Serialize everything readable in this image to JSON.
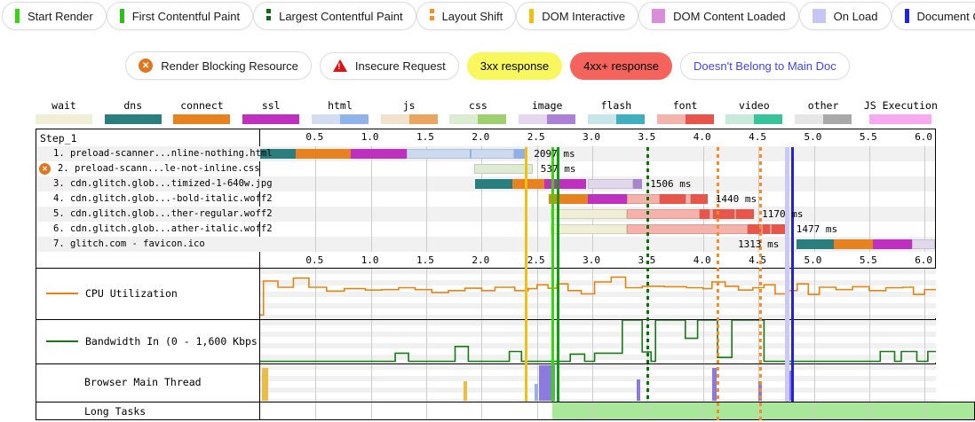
{
  "metrics_legend": [
    {
      "label": "Start Render",
      "icon": "bar",
      "color": "#35d60e"
    },
    {
      "label": "First Contentful Paint",
      "icon": "bar",
      "color": "#2bc116"
    },
    {
      "label": "Largest Contentful Paint",
      "icon": "dashed-bar",
      "color": "#0a6e0a"
    },
    {
      "label": "Layout Shift",
      "icon": "dashed-bar",
      "color": "#f79022"
    },
    {
      "label": "DOM Interactive",
      "icon": "bar",
      "color": "#f0c113"
    },
    {
      "label": "DOM Content Loaded",
      "icon": "square",
      "color": "#d88fd8"
    },
    {
      "label": "On Load",
      "icon": "square",
      "color": "#c6c6f2"
    },
    {
      "label": "Document Complete",
      "icon": "bar",
      "color": "#2222dd"
    }
  ],
  "flags_legend": [
    {
      "label": "Render Blocking Resource",
      "icon": "blocking-icon",
      "icon_color": "#e2761d",
      "bg": "#ffffff",
      "text_color": "#1b1b1b"
    },
    {
      "label": "Insecure Request",
      "icon": "insecure-icon",
      "icon_color": "#dd1111",
      "bg": "#ffffff",
      "text_color": "#1b1b1b"
    },
    {
      "label": "3xx response",
      "icon": null,
      "bg": "#f8f85e",
      "text_color": "#000000"
    },
    {
      "label": "4xx+ response",
      "icon": null,
      "bg": "#f4645c",
      "text_color": "#000000"
    },
    {
      "label": "Doesn't Belong to Main Doc",
      "icon": null,
      "bg": "#ffffff",
      "text_color": "#4343f5"
    }
  ],
  "resource_legend": [
    {
      "label": "wait",
      "colors": [
        "#f0eed6"
      ]
    },
    {
      "label": "dns",
      "colors": [
        "#2a7e7e"
      ]
    },
    {
      "label": "connect",
      "colors": [
        "#e8821e"
      ]
    },
    {
      "label": "ssl",
      "colors": [
        "#c030c0"
      ]
    },
    {
      "label": "html",
      "colors": [
        "#d3ddf1",
        "#8fb3ea"
      ]
    },
    {
      "label": "js",
      "colors": [
        "#f0e2cd",
        "#eaa65e"
      ]
    },
    {
      "label": "css",
      "colors": [
        "#dcecd0",
        "#9ed06f"
      ]
    },
    {
      "label": "image",
      "colors": [
        "#e5d7ef",
        "#ab80d6"
      ]
    },
    {
      "label": "flash",
      "colors": [
        "#c7e6e8",
        "#40b0c0"
      ]
    },
    {
      "label": "font",
      "colors": [
        "#f4b4ac",
        "#e8544a"
      ]
    },
    {
      "label": "video",
      "colors": [
        "#c9e9da",
        "#37c39b"
      ]
    },
    {
      "label": "other",
      "colors": [
        "#e6e6e6",
        "#a9a9a9"
      ]
    },
    {
      "label": "JS Execution",
      "colors": [
        "#f8a9ef"
      ]
    }
  ],
  "palette": {
    "dns": "#2a7e7e",
    "connect": "#e8821e",
    "ssl": "#c030c0",
    "wait": "#f0eed6",
    "html_l": "#ccdaf1",
    "html_d": "#8fb0e8",
    "css_l": "#dcebd2",
    "img_l": "#e2d8ee",
    "img_d": "#a786d0",
    "font_l": "#f4b2aa",
    "font_d": "#e8554b"
  },
  "waterfall": {
    "step_label": "Step_1",
    "axis_ticks": [
      "0.5",
      "1.0",
      "1.5",
      "2.0",
      "2.5",
      "3.0",
      "3.5",
      "4.0",
      "4.5",
      "5.0",
      "5.5",
      "6.0"
    ],
    "requests": [
      {
        "label": "1. preload-scanner...nline-nothing.html",
        "blocked": false,
        "time_label": "2097 ms",
        "label_t": 2.44,
        "segments": [
          [
            0,
            0.32,
            "dns"
          ],
          [
            0.32,
            0.82,
            "connect"
          ],
          [
            0.82,
            1.32,
            "ssl"
          ],
          [
            1.32,
            2.29,
            "html_l"
          ],
          [
            1.89,
            1.91,
            "html_d"
          ],
          [
            2.29,
            2.4,
            "html_d"
          ]
        ]
      },
      {
        "label": "2. preload-scann...le-not-inline.css",
        "blocked": true,
        "time_label": "537 ms",
        "label_t": 2.5,
        "segments": [
          [
            1.93,
            2.46,
            "css_l"
          ]
        ]
      },
      {
        "label": "3. cdn.glitch.glob...timized-1-640w.jpg",
        "blocked": false,
        "time_label": "1506 ms",
        "label_t": 3.49,
        "segments": [
          [
            1.94,
            2.28,
            "dns"
          ],
          [
            2.28,
            2.57,
            "connect"
          ],
          [
            2.57,
            2.94,
            "ssl"
          ],
          [
            2.96,
            3.37,
            "img_l"
          ],
          [
            3.37,
            3.45,
            "img_d"
          ]
        ]
      },
      {
        "label": "4. cdn.glitch.glob...-bold-italic.woff2",
        "blocked": false,
        "time_label": "1440 ms",
        "label_t": 4.08,
        "segments": [
          [
            2.61,
            2.96,
            "connect"
          ],
          [
            2.96,
            3.31,
            "ssl"
          ],
          [
            3.31,
            3.61,
            "font_l"
          ],
          [
            3.61,
            3.84,
            "font_d"
          ],
          [
            3.84,
            3.89,
            "font_l"
          ],
          [
            3.89,
            4.04,
            "font_d"
          ]
        ]
      },
      {
        "label": "5. cdn.glitch.glob...ther-regular.woff2",
        "blocked": false,
        "time_label": "1170 ms",
        "label_t": 4.5,
        "segments": [
          [
            2.62,
            3.31,
            "wait"
          ],
          [
            3.31,
            3.97,
            "font_l"
          ],
          [
            3.97,
            4.06,
            "font_d"
          ],
          [
            4.06,
            4.09,
            "font_l"
          ],
          [
            4.09,
            4.28,
            "font_d"
          ],
          [
            4.28,
            4.3,
            "font_l"
          ],
          [
            4.3,
            4.46,
            "font_d"
          ]
        ]
      },
      {
        "label": "6. cdn.glitch.glob...ather-italic.woff2",
        "blocked": false,
        "time_label": "1477 ms",
        "label_t": 4.81,
        "segments": [
          [
            2.62,
            3.31,
            "wait"
          ],
          [
            3.31,
            4.4,
            "font_l"
          ],
          [
            4.4,
            4.52,
            "font_d"
          ],
          [
            4.52,
            4.54,
            "font_l"
          ],
          [
            4.54,
            4.6,
            "font_d"
          ],
          [
            4.6,
            4.62,
            "font_l"
          ],
          [
            4.62,
            4.77,
            "font_d"
          ]
        ]
      },
      {
        "label": "7. glitch.com - favicon.ico",
        "blocked": false,
        "time_label": "1313 ms",
        "label_t": 4.78,
        "label_before": true,
        "segments": [
          [
            4.84,
            5.18,
            "dns"
          ],
          [
            5.18,
            5.53,
            "connect"
          ],
          [
            5.53,
            5.89,
            "ssl"
          ],
          [
            5.89,
            6.12,
            "img_l"
          ]
        ]
      }
    ]
  },
  "markers": [
    {
      "name": "dom-interactive",
      "t": 2.4,
      "color": "#f0c113",
      "style": "solid",
      "w": 3
    },
    {
      "name": "first-contentful-paint",
      "t": 2.64,
      "color": "#35d60e",
      "style": "solid",
      "w": 3
    },
    {
      "name": "start-render",
      "t": 2.69,
      "color": "#0ca00c",
      "style": "solid",
      "w": 3
    },
    {
      "name": "largest-contentful-paint",
      "t": 3.5,
      "color": "#0a700a",
      "style": "dashed",
      "w": 3
    },
    {
      "name": "layout-shift-1",
      "t": 4.13,
      "color": "#fb8c1e",
      "style": "dashed",
      "w": 3,
      "tall": true
    },
    {
      "name": "layout-shift-2",
      "t": 4.52,
      "color": "#fb8c1e",
      "style": "dashed",
      "w": 3,
      "tall": true
    },
    {
      "name": "on-load",
      "t": 4.76,
      "color": "#c9c9f4",
      "style": "solid",
      "w": 5
    },
    {
      "name": "document-complete",
      "t": 4.81,
      "color": "#2020dd",
      "style": "solid",
      "w": 3
    }
  ],
  "cpu": {
    "label": "CPU Utilization",
    "color": "#e8830f",
    "points": [
      [
        0,
        5
      ],
      [
        0.03,
        76
      ],
      [
        0.16,
        63
      ],
      [
        0.3,
        82
      ],
      [
        0.44,
        63
      ],
      [
        0.6,
        55
      ],
      [
        0.76,
        60
      ],
      [
        0.95,
        57
      ],
      [
        1.1,
        58
      ],
      [
        1.25,
        62
      ],
      [
        1.4,
        58
      ],
      [
        1.55,
        52
      ],
      [
        1.7,
        56
      ],
      [
        1.85,
        61
      ],
      [
        2.0,
        56
      ],
      [
        2.12,
        63
      ],
      [
        2.3,
        56
      ],
      [
        2.42,
        60
      ],
      [
        2.5,
        68
      ],
      [
        2.6,
        61
      ],
      [
        2.68,
        70
      ],
      [
        2.78,
        56
      ],
      [
        2.9,
        49
      ],
      [
        3.02,
        74
      ],
      [
        3.17,
        84
      ],
      [
        3.3,
        62
      ],
      [
        3.45,
        65
      ],
      [
        3.65,
        64
      ],
      [
        3.85,
        62
      ],
      [
        4.0,
        60
      ],
      [
        4.08,
        74
      ],
      [
        4.2,
        65
      ],
      [
        4.32,
        57
      ],
      [
        4.45,
        62
      ],
      [
        4.55,
        68
      ],
      [
        4.65,
        49
      ],
      [
        4.75,
        56
      ],
      [
        4.85,
        70
      ],
      [
        4.95,
        48
      ],
      [
        5.05,
        63
      ],
      [
        5.2,
        58
      ],
      [
        5.35,
        64
      ],
      [
        5.5,
        56
      ],
      [
        5.65,
        62
      ],
      [
        5.8,
        63
      ],
      [
        5.9,
        48
      ],
      [
        6.0,
        58
      ],
      [
        6.11,
        58
      ]
    ]
  },
  "bandwidth": {
    "label": "Bandwidth In (0 - 1,600 Kbps)",
    "color": "#157a15",
    "points": [
      [
        0,
        3
      ],
      [
        1.22,
        22
      ],
      [
        1.34,
        3
      ],
      [
        1.76,
        38
      ],
      [
        1.88,
        3
      ],
      [
        2.25,
        26
      ],
      [
        2.36,
        3
      ],
      [
        2.8,
        20
      ],
      [
        2.93,
        3
      ],
      [
        3.02,
        22
      ],
      [
        3.27,
        100
      ],
      [
        3.45,
        25
      ],
      [
        3.53,
        3
      ],
      [
        3.57,
        100
      ],
      [
        3.84,
        57
      ],
      [
        3.95,
        100
      ],
      [
        4.13,
        12
      ],
      [
        4.26,
        100
      ],
      [
        4.55,
        3
      ],
      [
        5.6,
        26
      ],
      [
        5.73,
        3
      ],
      [
        5.79,
        26
      ],
      [
        5.93,
        3
      ],
      [
        6.03,
        26
      ],
      [
        6.11,
        26
      ]
    ]
  },
  "main_thread": {
    "label": "Browser Main Thread",
    "bars": [
      [
        0.02,
        0.07,
        92,
        "#eebb44"
      ],
      [
        1.84,
        1.87,
        55,
        "#eebb44"
      ],
      [
        2.48,
        2.51,
        48,
        "#9ab0dd"
      ],
      [
        2.52,
        2.66,
        100,
        "#8b7ae0"
      ],
      [
        3.4,
        3.43,
        60,
        "#8b7ae0"
      ],
      [
        4.08,
        4.12,
        93,
        "#8b7ae0"
      ],
      [
        4.5,
        4.53,
        55,
        "#8b7ae0"
      ],
      [
        4.78,
        4.81,
        85,
        "#8b7ae0"
      ]
    ]
  },
  "long_tasks": {
    "label": "Long Tasks",
    "color": "#a9e79a",
    "bars": [
      [
        2.64,
        6.46
      ]
    ]
  }
}
